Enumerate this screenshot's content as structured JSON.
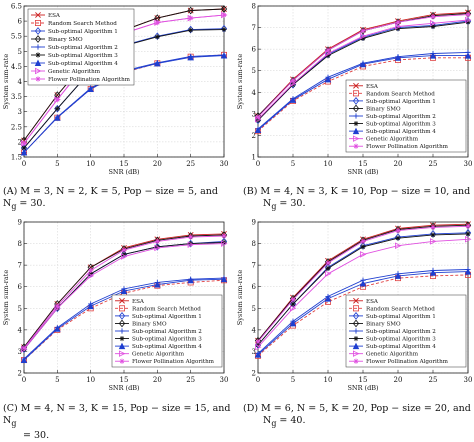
{
  "chart_data": [
    {
      "type": "line",
      "caption": "(A) M = 3, N = 2, K = 5, Pop − size = 5, and N_g = 30.",
      "xlabel": "SNR (dB)",
      "ylabel": "System sum-rate",
      "xlim": [
        0,
        30
      ],
      "ylim": [
        1.5,
        6.5
      ],
      "xticks": [
        0,
        5,
        10,
        15,
        20,
        25,
        30
      ],
      "yticks": [
        1.5,
        2,
        2.5,
        3,
        3.5,
        4,
        4.5,
        5,
        5.5,
        6,
        6.5
      ],
      "ytick_labels": [
        "1.5",
        "2",
        "2.5",
        "3",
        "3.5",
        "4",
        "4.5",
        "5",
        "5.5",
        "6",
        "6.5"
      ],
      "legend_position": "top-left",
      "grid": true,
      "x": [
        0,
        5,
        10,
        15,
        20,
        25,
        30
      ],
      "series": [
        {
          "name": "ESA",
          "values": [
            2.05,
            3.55,
            4.85,
            5.7,
            6.1,
            6.35,
            6.4
          ]
        },
        {
          "name": "Random Search Method",
          "values": [
            1.65,
            2.8,
            3.75,
            4.3,
            4.6,
            4.82,
            4.88
          ]
        },
        {
          "name": "Sub-optimal Algorithm 1",
          "values": [
            1.8,
            3.1,
            4.35,
            5.2,
            5.5,
            5.72,
            5.75
          ]
        },
        {
          "name": "Binary SMO",
          "values": [
            2.05,
            3.55,
            4.85,
            5.7,
            6.1,
            6.35,
            6.4
          ]
        },
        {
          "name": "Sub-optimal Algorithm 2",
          "values": [
            1.65,
            2.82,
            3.78,
            4.35,
            4.62,
            4.83,
            4.88
          ]
        },
        {
          "name": "Sub-optimal Algorithm 3",
          "values": [
            1.8,
            3.1,
            4.35,
            5.18,
            5.48,
            5.7,
            5.72
          ]
        },
        {
          "name": "Sub-optimal Algorithm 4",
          "values": [
            1.65,
            2.8,
            3.75,
            4.32,
            4.6,
            4.8,
            4.86
          ]
        },
        {
          "name": "Genetic Algorithm",
          "values": [
            1.95,
            3.4,
            4.75,
            5.6,
            5.95,
            6.1,
            6.2
          ]
        },
        {
          "name": "Flower Pollination Algorithm",
          "values": [
            1.95,
            3.4,
            4.8,
            5.6,
            5.95,
            6.1,
            6.2
          ]
        }
      ]
    },
    {
      "type": "line",
      "caption": "(B) M = 4, N = 3, K = 10, Pop − size = 10, and N_g = 30.",
      "xlabel": "SNR (dB)",
      "ylabel": "System sum-rate",
      "xlim": [
        0,
        30
      ],
      "ylim": [
        1,
        8
      ],
      "xticks": [
        0,
        5,
        10,
        15,
        20,
        25,
        30
      ],
      "yticks": [
        1,
        2,
        3,
        4,
        5,
        6,
        7,
        8
      ],
      "ytick_labels": [
        "1",
        "2",
        "3",
        "4",
        "5",
        "6",
        "7",
        "8"
      ],
      "legend_position": "bottom-right",
      "grid": true,
      "x": [
        0,
        5,
        10,
        15,
        20,
        25,
        30
      ],
      "series": [
        {
          "name": "ESA",
          "values": [
            2.9,
            4.6,
            6.0,
            6.9,
            7.3,
            7.6,
            7.7
          ]
        },
        {
          "name": "Random Search Method",
          "values": [
            2.2,
            3.6,
            4.5,
            5.2,
            5.5,
            5.6,
            5.6
          ]
        },
        {
          "name": "Sub-optimal Algorithm 1",
          "values": [
            2.7,
            4.35,
            5.75,
            6.55,
            7.0,
            7.1,
            7.3
          ]
        },
        {
          "name": "Binary SMO",
          "values": [
            2.9,
            4.55,
            5.95,
            6.85,
            7.25,
            7.55,
            7.65
          ]
        },
        {
          "name": "Sub-optimal Algorithm 2",
          "values": [
            2.3,
            3.7,
            4.7,
            5.35,
            5.65,
            5.8,
            5.85
          ]
        },
        {
          "name": "Sub-optimal Algorithm 3",
          "values": [
            2.7,
            4.35,
            5.7,
            6.5,
            6.95,
            7.05,
            7.25
          ]
        },
        {
          "name": "Sub-optimal Algorithm 4",
          "values": [
            2.25,
            3.65,
            4.6,
            5.3,
            5.6,
            5.7,
            5.7
          ]
        },
        {
          "name": "Genetic Algorithm",
          "values": [
            2.75,
            4.4,
            5.8,
            6.6,
            7.05,
            7.2,
            7.35
          ]
        },
        {
          "name": "Flower Pollination Algorithm",
          "values": [
            2.85,
            4.55,
            5.95,
            6.85,
            7.25,
            7.5,
            7.6
          ]
        }
      ]
    },
    {
      "type": "line",
      "caption": "(C) M = 4, N = 3, K = 15, Pop − size = 15, and N_g = 30.",
      "xlabel": "SNR (dB)",
      "ylabel": "System sum-rate",
      "xlim": [
        0,
        30
      ],
      "ylim": [
        2,
        9
      ],
      "xticks": [
        0,
        5,
        10,
        15,
        20,
        25,
        30
      ],
      "yticks": [
        2,
        3,
        4,
        5,
        6,
        7,
        8,
        9
      ],
      "ytick_labels": [
        "2",
        "3",
        "4",
        "5",
        "6",
        "7",
        "8",
        "9"
      ],
      "legend_position": "bottom-right",
      "grid": true,
      "x": [
        0,
        5,
        10,
        15,
        20,
        25,
        30
      ],
      "series": [
        {
          "name": "ESA",
          "values": [
            3.2,
            5.2,
            6.9,
            7.8,
            8.2,
            8.4,
            8.45
          ]
        },
        {
          "name": "Random Search Method",
          "values": [
            2.6,
            4.0,
            5.0,
            5.7,
            6.05,
            6.2,
            6.3
          ]
        },
        {
          "name": "Sub-optimal Algorithm 1",
          "values": [
            3.1,
            5.0,
            6.6,
            7.5,
            7.85,
            8.0,
            8.1
          ]
        },
        {
          "name": "Binary SMO",
          "values": [
            3.2,
            5.2,
            6.9,
            7.75,
            8.15,
            8.35,
            8.4
          ]
        },
        {
          "name": "Sub-optimal Algorithm 2",
          "values": [
            2.65,
            4.1,
            5.2,
            5.9,
            6.2,
            6.35,
            6.4
          ]
        },
        {
          "name": "Sub-optimal Algorithm 3",
          "values": [
            3.1,
            5.0,
            6.6,
            7.5,
            7.85,
            8.0,
            8.05
          ]
        },
        {
          "name": "Sub-optimal Algorithm 4",
          "values": [
            2.6,
            4.05,
            5.1,
            5.8,
            6.1,
            6.3,
            6.35
          ]
        },
        {
          "name": "Genetic Algorithm",
          "values": [
            3.1,
            5.0,
            6.5,
            7.4,
            7.8,
            7.95,
            8.0
          ]
        },
        {
          "name": "Flower Pollination Algorithm",
          "values": [
            3.15,
            5.1,
            6.75,
            7.7,
            8.1,
            8.3,
            8.35
          ]
        }
      ]
    },
    {
      "type": "line",
      "caption": "(D) M = 6, N = 5, K = 20, Pop − size = 20, and N_g = 40.",
      "xlabel": "SNR (dB)",
      "ylabel": "System sum-rate",
      "xlim": [
        0,
        30
      ],
      "ylim": [
        2,
        9
      ],
      "xticks": [
        0,
        5,
        10,
        15,
        20,
        25,
        30
      ],
      "yticks": [
        2,
        3,
        4,
        5,
        6,
        7,
        8,
        9
      ],
      "ytick_labels": [
        "2",
        "3",
        "4",
        "5",
        "6",
        "7",
        "8",
        "9"
      ],
      "legend_position": "bottom-right",
      "grid": true,
      "x": [
        0,
        5,
        10,
        15,
        20,
        25,
        30
      ],
      "series": [
        {
          "name": "ESA",
          "values": [
            3.5,
            5.5,
            7.2,
            8.2,
            8.7,
            8.85,
            8.9
          ]
        },
        {
          "name": "Random Search Method",
          "values": [
            2.8,
            4.2,
            5.3,
            6.0,
            6.4,
            6.5,
            6.55
          ]
        },
        {
          "name": "Sub-optimal Algorithm 1",
          "values": [
            3.3,
            5.2,
            6.9,
            7.9,
            8.3,
            8.45,
            8.5
          ]
        },
        {
          "name": "Binary SMO",
          "values": [
            3.5,
            5.45,
            7.15,
            8.15,
            8.65,
            8.8,
            8.85
          ]
        },
        {
          "name": "Sub-optimal Algorithm 2",
          "values": [
            2.9,
            4.4,
            5.55,
            6.3,
            6.6,
            6.75,
            6.8
          ]
        },
        {
          "name": "Sub-optimal Algorithm 3",
          "values": [
            3.3,
            5.2,
            6.85,
            7.85,
            8.25,
            8.4,
            8.45
          ]
        },
        {
          "name": "Sub-optimal Algorithm 4",
          "values": [
            2.85,
            4.3,
            5.45,
            6.15,
            6.5,
            6.65,
            6.7
          ]
        },
        {
          "name": "Genetic Algorithm",
          "values": [
            3.2,
            5.0,
            6.6,
            7.5,
            7.9,
            8.1,
            8.2
          ]
        },
        {
          "name": "Flower Pollination Algorithm",
          "values": [
            3.45,
            5.4,
            7.1,
            8.1,
            8.6,
            8.75,
            8.8
          ]
        }
      ]
    }
  ],
  "style": {
    "colors": [
      "#cc1f1f",
      "#e04040",
      "#1f3fd0",
      "#111111",
      "#1f3fd0",
      "#111111",
      "#1f3fd0",
      "#e050e0",
      "#e050e0"
    ],
    "markers": [
      "x",
      "square",
      "diamond",
      "diamond",
      "plus",
      "star",
      "triangle-up",
      "triangle-right",
      "star"
    ],
    "dashed": [
      false,
      true,
      false,
      false,
      false,
      false,
      false,
      false,
      false
    ]
  },
  "captions": {
    "a": "(A) M = 3, N = 2, K = 5, Pop − size = 5, and N",
    "a_sub": "g",
    "a_tail": " = 30.",
    "b": "(B) M = 4, N = 3, K = 10, Pop − size = 10, and",
    "b2": "N",
    "b2_sub": "g",
    "b2_tail": " = 30.",
    "c": "(C) M = 4, N = 3, K = 15, Pop − size = 15, and N",
    "c_sub": "g",
    "c2": "= 30.",
    "d": "(D) M = 6, N = 5, K = 20, Pop − size = 20, and",
    "d2": "N",
    "d2_sub": "g",
    "d2_tail": " = 40."
  }
}
